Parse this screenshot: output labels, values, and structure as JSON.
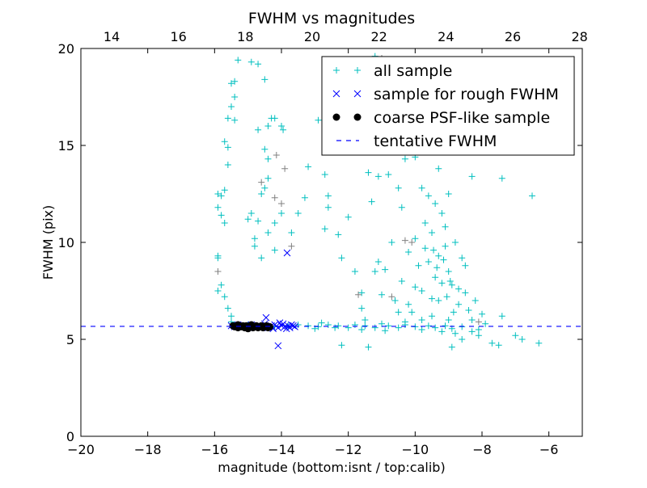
{
  "chart_data": {
    "type": "scatter",
    "title": "FWHM vs magnitudes",
    "xlabel": "magnitude (bottom:isnt / top:calib)",
    "ylabel": "FWHM (pix)",
    "xlim": [
      -20,
      -5
    ],
    "ylim": [
      0,
      20
    ],
    "top_xlim": [
      13.08,
      28.08
    ],
    "xticks": [
      -20,
      -18,
      -16,
      -14,
      -12,
      -10,
      -8,
      -6
    ],
    "xtick_labels": [
      "−20",
      "−18",
      "−16",
      "−14",
      "−12",
      "−10",
      "−8",
      "−6"
    ],
    "top_xticks": [
      14,
      16,
      18,
      20,
      22,
      24,
      26,
      28
    ],
    "top_xtick_labels": [
      "14",
      "16",
      "18",
      "20",
      "22",
      "24",
      "26",
      "28"
    ],
    "yticks": [
      0,
      5,
      10,
      15,
      20
    ],
    "ytick_labels": [
      "0",
      "5",
      "10",
      "15",
      "20"
    ],
    "grid": false,
    "legend_placement": "top-right",
    "tentative_fwhm": 5.67,
    "series": [
      {
        "name": "all sample",
        "marker": "+",
        "color": "#00BFBF",
        "points": [
          [
            -15.3,
            19.4
          ],
          [
            -15.4,
            18.3
          ],
          [
            -15.5,
            18.2
          ],
          [
            -15.4,
            17.5
          ],
          [
            -15.5,
            17.0
          ],
          [
            -15.6,
            16.4
          ],
          [
            -15.4,
            16.3
          ],
          [
            -15.7,
            15.2
          ],
          [
            -15.6,
            14.9
          ],
          [
            -15.6,
            14.0
          ],
          [
            -15.9,
            12.5
          ],
          [
            -15.7,
            12.7
          ],
          [
            -15.8,
            12.4
          ],
          [
            -15.9,
            11.8
          ],
          [
            -15.8,
            11.4
          ],
          [
            -15.7,
            11.0
          ],
          [
            -15.9,
            9.3
          ],
          [
            -15.9,
            9.2
          ],
          [
            -15.8,
            7.8
          ],
          [
            -15.9,
            7.5
          ],
          [
            -15.7,
            7.2
          ],
          [
            -15.6,
            6.6
          ],
          [
            -15.5,
            6.2
          ],
          [
            -15.5,
            5.9
          ],
          [
            -14.7,
            19.2
          ],
          [
            -14.9,
            19.3
          ],
          [
            -14.5,
            18.4
          ],
          [
            -14.3,
            16.4
          ],
          [
            -14.4,
            16.0
          ],
          [
            -14.2,
            16.4
          ],
          [
            -14.7,
            15.8
          ],
          [
            -14.5,
            14.8
          ],
          [
            -14.4,
            14.3
          ],
          [
            -14.4,
            13.3
          ],
          [
            -14.5,
            12.8
          ],
          [
            -14.6,
            12.5
          ],
          [
            -14.0,
            16.0
          ],
          [
            -13.95,
            15.8
          ],
          [
            -14.9,
            11.5
          ],
          [
            -15.0,
            11.2
          ],
          [
            -14.7,
            11.1
          ],
          [
            -14.2,
            11.0
          ],
          [
            -14.0,
            11.5
          ],
          [
            -14.4,
            10.5
          ],
          [
            -14.8,
            10.2
          ],
          [
            -14.8,
            9.8
          ],
          [
            -14.6,
            9.2
          ],
          [
            -14.2,
            9.6
          ],
          [
            -13.7,
            10.5
          ],
          [
            -13.5,
            11.5
          ],
          [
            -13.3,
            12.3
          ],
          [
            -13.2,
            13.9
          ],
          [
            -12.9,
            16.3
          ],
          [
            -12.7,
            13.5
          ],
          [
            -12.6,
            12.4
          ],
          [
            -12.6,
            11.8
          ],
          [
            -12.7,
            10.7
          ],
          [
            -12.3,
            10.4
          ],
          [
            -12.2,
            9.2
          ],
          [
            -12.0,
            11.3
          ],
          [
            -11.8,
            8.5
          ],
          [
            -11.6,
            7.4
          ],
          [
            -11.6,
            6.6
          ],
          [
            -11.4,
            13.6
          ],
          [
            -11.3,
            12.1
          ],
          [
            -11.1,
            9.0
          ],
          [
            -11.2,
            8.5
          ],
          [
            -11.5,
            6.0
          ],
          [
            -12.2,
            4.7
          ],
          [
            -11.4,
            4.6
          ],
          [
            -7.4,
            13.3
          ],
          [
            -7.4,
            6.2
          ],
          [
            -6.5,
            12.4
          ],
          [
            -6.8,
            5.0
          ],
          [
            -6.3,
            4.8
          ],
          [
            -7.0,
            5.2
          ],
          [
            -7.7,
            4.8
          ],
          [
            -7.5,
            4.7
          ],
          [
            -8.3,
            13.4
          ],
          [
            -9.3,
            13.8
          ],
          [
            -10.0,
            14.4
          ],
          [
            -10.3,
            14.3
          ],
          [
            -10.5,
            12.8
          ],
          [
            -10.8,
            13.5
          ],
          [
            -11.1,
            13.4
          ],
          [
            -9.7,
            15.7
          ],
          [
            -10.2,
            17.0
          ],
          [
            -10.0,
            17.8
          ],
          [
            -10.6,
            19.0
          ],
          [
            -11.2,
            19.6
          ],
          [
            -11.6,
            19.0
          ],
          [
            -9.5,
            16.8
          ],
          [
            -10.6,
            7.0
          ],
          [
            -10.4,
            8.0
          ],
          [
            -10.2,
            9.5
          ],
          [
            -10.0,
            10.2
          ],
          [
            -9.9,
            8.8
          ],
          [
            -9.8,
            7.5
          ],
          [
            -9.7,
            11.0
          ],
          [
            -9.6,
            9.0
          ],
          [
            -9.5,
            10.5
          ],
          [
            -9.4,
            8.2
          ],
          [
            -9.3,
            7.0
          ],
          [
            -9.2,
            11.5
          ],
          [
            -9.1,
            9.8
          ],
          [
            -9.0,
            8.5
          ],
          [
            -8.9,
            7.8
          ],
          [
            -8.8,
            10.0
          ],
          [
            -8.7,
            6.8
          ],
          [
            -8.6,
            9.2
          ],
          [
            -8.5,
            7.4
          ],
          [
            -8.4,
            6.5
          ],
          [
            -8.3,
            6.0
          ],
          [
            -8.2,
            7.0
          ],
          [
            -8.1,
            5.5
          ],
          [
            -8.0,
            6.3
          ],
          [
            -7.9,
            5.8
          ],
          [
            -9.5,
            6.2
          ],
          [
            -9.8,
            6.0
          ],
          [
            -10.1,
            6.4
          ],
          [
            -10.3,
            5.9
          ],
          [
            -9.0,
            6.0
          ],
          [
            -8.8,
            5.3
          ],
          [
            -8.6,
            5.0
          ],
          [
            -8.9,
            4.6
          ],
          [
            -9.2,
            5.4
          ],
          [
            -9.4,
            12.0
          ],
          [
            -9.6,
            12.4
          ],
          [
            -9.0,
            12.5
          ],
          [
            -9.8,
            12.8
          ],
          [
            -10.4,
            11.8
          ],
          [
            -10.7,
            10.0
          ],
          [
            -10.9,
            8.6
          ],
          [
            -11.0,
            7.3
          ],
          [
            -10.5,
            6.4
          ],
          [
            -9.7,
            9.7
          ],
          [
            -9.3,
            9.3
          ],
          [
            -9.1,
            10.8
          ],
          [
            -8.95,
            8.0
          ],
          [
            -8.7,
            7.6
          ],
          [
            -8.5,
            8.8
          ],
          [
            -9.2,
            7.9
          ],
          [
            -9.5,
            7.1
          ],
          [
            -10.0,
            7.7
          ],
          [
            -10.2,
            6.8
          ],
          [
            -9.35,
            8.7
          ],
          [
            -9.15,
            9.1
          ],
          [
            -8.85,
            6.4
          ],
          [
            -9.05,
            7.2
          ],
          [
            -9.45,
            9.6
          ],
          [
            -15.3,
            5.7
          ],
          [
            -15.0,
            5.75
          ],
          [
            -14.6,
            5.7
          ],
          [
            -14.2,
            5.65
          ],
          [
            -13.8,
            5.7
          ],
          [
            -13.5,
            5.75
          ],
          [
            -13.2,
            5.7
          ],
          [
            -12.9,
            5.65
          ],
          [
            -12.6,
            5.75
          ],
          [
            -12.3,
            5.7
          ],
          [
            -12.0,
            5.6
          ],
          [
            -11.8,
            5.75
          ],
          [
            -11.5,
            5.7
          ],
          [
            -11.2,
            5.6
          ],
          [
            -11.0,
            5.8
          ],
          [
            -10.8,
            5.7
          ],
          [
            -10.5,
            5.6
          ],
          [
            -10.3,
            5.75
          ],
          [
            -10.0,
            5.65
          ],
          [
            -9.8,
            5.5
          ],
          [
            -9.6,
            5.7
          ],
          [
            -9.4,
            5.6
          ],
          [
            -9.1,
            5.7
          ],
          [
            -8.9,
            5.55
          ],
          [
            -8.6,
            5.65
          ],
          [
            -8.3,
            5.4
          ],
          [
            -8.1,
            5.2
          ],
          [
            -12.8,
            5.85
          ],
          [
            -13.0,
            5.55
          ],
          [
            -11.6,
            5.5
          ],
          [
            -10.9,
            5.45
          ],
          [
            -12.4,
            5.6
          ]
        ]
      },
      {
        "name": "",
        "marker": "+",
        "color": "#808080",
        "points": [
          [
            -15.9,
            8.5
          ],
          [
            -14.2,
            12.3
          ],
          [
            -14.0,
            12.0
          ],
          [
            -13.9,
            13.8
          ],
          [
            -13.7,
            9.8
          ],
          [
            -10.1,
            10.0
          ],
          [
            -10.3,
            10.1
          ],
          [
            -11.7,
            7.3
          ],
          [
            -10.7,
            7.2
          ],
          [
            -8.1,
            5.9
          ],
          [
            -11.0,
            19.5
          ],
          [
            -14.6,
            13.1
          ],
          [
            -14.15,
            14.5
          ]
        ]
      },
      {
        "name": "sample for rough FWHM",
        "marker": "x",
        "color": "#0000FF",
        "points": [
          [
            -15.5,
            5.7
          ],
          [
            -15.4,
            5.65
          ],
          [
            -15.3,
            5.75
          ],
          [
            -15.2,
            5.6
          ],
          [
            -15.1,
            5.7
          ],
          [
            -15.0,
            5.65
          ],
          [
            -14.9,
            5.75
          ],
          [
            -14.8,
            5.6
          ],
          [
            -14.7,
            5.7
          ],
          [
            -14.6,
            5.65
          ],
          [
            -14.5,
            5.8
          ],
          [
            -14.4,
            5.6
          ],
          [
            -14.3,
            5.7
          ],
          [
            -14.2,
            5.75
          ],
          [
            -14.1,
            5.6
          ],
          [
            -14.0,
            5.7
          ],
          [
            -13.95,
            5.8
          ],
          [
            -13.9,
            5.65
          ],
          [
            -13.85,
            5.55
          ],
          [
            -13.8,
            5.7
          ],
          [
            -13.75,
            5.6
          ],
          [
            -13.7,
            5.75
          ],
          [
            -13.65,
            5.7
          ],
          [
            -13.6,
            5.65
          ],
          [
            -14.05,
            5.85
          ],
          [
            -14.25,
            5.55
          ],
          [
            -13.83,
            9.46
          ],
          [
            -14.46,
            6.12
          ],
          [
            -14.1,
            4.67
          ]
        ]
      },
      {
        "name": "coarse PSF-like sample",
        "marker": "o",
        "color": "#000000",
        "points": [
          [
            -15.45,
            5.7
          ],
          [
            -15.4,
            5.65
          ],
          [
            -15.35,
            5.7
          ],
          [
            -15.3,
            5.6
          ],
          [
            -15.25,
            5.7
          ],
          [
            -15.2,
            5.65
          ],
          [
            -15.15,
            5.7
          ],
          [
            -15.1,
            5.6
          ],
          [
            -15.05,
            5.7
          ],
          [
            -15.0,
            5.55
          ],
          [
            -14.95,
            5.65
          ],
          [
            -14.9,
            5.7
          ],
          [
            -14.85,
            5.6
          ],
          [
            -14.8,
            5.65
          ],
          [
            -14.75,
            5.7
          ],
          [
            -14.7,
            5.6
          ],
          [
            -14.65,
            5.65
          ],
          [
            -14.6,
            5.7
          ],
          [
            -14.55,
            5.6
          ],
          [
            -14.5,
            5.65
          ],
          [
            -14.45,
            5.7
          ],
          [
            -14.4,
            5.6
          ],
          [
            -14.35,
            5.65
          ],
          [
            -15.3,
            5.75
          ],
          [
            -14.9,
            5.75
          ]
        ]
      }
    ],
    "legend": [
      {
        "label": "all sample",
        "marker": "+",
        "color": "#00BFBF"
      },
      {
        "label": "sample for rough FWHM",
        "marker": "x",
        "color": "#0000FF"
      },
      {
        "label": "coarse PSF-like sample",
        "marker": "o",
        "color": "#000000"
      },
      {
        "label": "tentative FWHM",
        "marker": "--",
        "color": "#0000FF"
      }
    ]
  }
}
